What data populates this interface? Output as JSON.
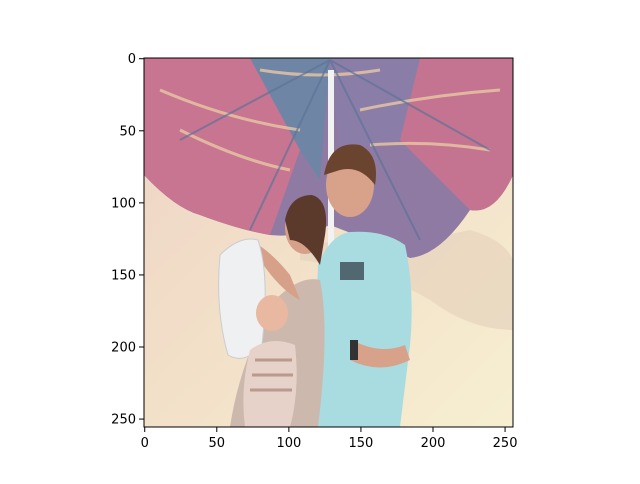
{
  "figure": {
    "background": "#ffffff",
    "image_panel": {
      "description_icon": "photo-umbrella-family",
      "x_ticks": [
        "0",
        "50",
        "100",
        "150",
        "200",
        "250"
      ],
      "y_ticks": [
        "0",
        "50",
        "100",
        "150",
        "200",
        "250"
      ],
      "x_range": [
        0,
        255
      ],
      "y_range": [
        0,
        255
      ],
      "colors": {
        "umbrella_pink": "#c46f86",
        "umbrella_purple": "#7e6f9e",
        "umbrella_blue": "#6e86a6",
        "wall": "#f1dcc6",
        "wall_light": "#f6efd6",
        "shirt": "#a9dde0",
        "skin": "#d9a68c",
        "hair": "#5a3a2c",
        "blanket": "#eef0f2"
      }
    }
  }
}
